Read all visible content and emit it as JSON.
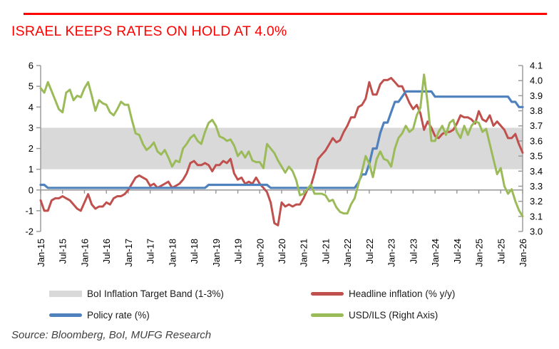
{
  "header": {
    "title": "ISRAEL KEEPS RATES ON HOLD AT 4.0%",
    "accent_color": "#FF0000"
  },
  "source": {
    "text": "Source: Bloomberg, BoI, MUFG Research"
  },
  "chart_data": {
    "type": "line",
    "title": "ISRAEL KEEPS RATES ON HOLD AT 4.0%",
    "xlabel": "",
    "ylabel_left": "",
    "ylabel_right": "",
    "grid": false,
    "legend_position": "bottom",
    "months_span": 132,
    "x_tick_step_months": 6,
    "x_tick_labels": [
      "Jan-15",
      "Jul-15",
      "Jan-16",
      "Jul-16",
      "Jan-17",
      "Jul-17",
      "Jan-18",
      "Jul-18",
      "Jan-19",
      "Jul-19",
      "Jan-20",
      "Jul-20",
      "Jan-21",
      "Jul-21",
      "Jan-22",
      "Jul-22",
      "Jan-23",
      "Jul-23",
      "Jan-24",
      "Jul-24",
      "Jan-25",
      "Jul-25",
      "Jan-26"
    ],
    "left_axis": {
      "min": -2,
      "max": 6,
      "ticks": [
        "6",
        "5",
        "4",
        "3",
        "2",
        "1",
        "0",
        "-1",
        "-2"
      ]
    },
    "right_axis": {
      "min": 3.0,
      "max": 4.1,
      "ticks": [
        "4.1",
        "4.0",
        "3.9",
        "3.8",
        "3.7",
        "3.6",
        "3.5",
        "3.4",
        "3.3",
        "3.2",
        "3.1",
        "3.0"
      ]
    },
    "band": {
      "label": "BoI Inflation Target Band (1-3%)",
      "from": 1,
      "to": 3,
      "color": "#D9D9D9"
    },
    "axis_color": "#969696",
    "legend": [
      {
        "label": "BoI Inflation Target Band (1-3%)",
        "type": "band",
        "color": "#D9D9D9"
      },
      {
        "label": "Headline inflation (% y/y)",
        "type": "line",
        "color": "#C0504D"
      },
      {
        "label": "Policy rate (%)",
        "type": "line",
        "color": "#4F81BD"
      },
      {
        "label": "USD/ILS (Right Axis)",
        "type": "line",
        "color": "#9BBB59"
      }
    ],
    "series": [
      {
        "name": "Headline inflation (% y/y)",
        "axis": "left",
        "color": "#C0504D",
        "width": 3,
        "values": [
          -0.5,
          -1.0,
          -1.0,
          -0.5,
          -0.4,
          -0.4,
          -0.3,
          -0.4,
          -0.5,
          -0.7,
          -0.9,
          -1.0,
          -0.6,
          -0.2,
          -0.7,
          -0.9,
          -0.8,
          -0.8,
          -0.6,
          -0.7,
          -0.4,
          -0.3,
          -0.3,
          -0.2,
          0.0,
          0.3,
          0.6,
          0.7,
          0.6,
          0.5,
          0.2,
          0.3,
          0.1,
          0.2,
          0.3,
          0.4,
          0.1,
          0.2,
          0.3,
          0.5,
          0.8,
          1.3,
          1.4,
          1.2,
          1.2,
          1.3,
          1.2,
          0.9,
          1.2,
          1.2,
          1.4,
          1.3,
          1.5,
          0.8,
          0.5,
          0.6,
          0.3,
          0.4,
          0.3,
          0.6,
          0.3,
          0.1,
          -0.1,
          -0.6,
          -1.6,
          -1.7,
          -0.6,
          -0.8,
          -0.7,
          -0.8,
          -0.7,
          -0.7,
          -0.4,
          0.0,
          0.2,
          0.8,
          1.5,
          1.7,
          1.9,
          2.2,
          2.5,
          2.3,
          2.4,
          2.8,
          3.1,
          3.5,
          3.5,
          4.0,
          4.1,
          4.4,
          5.2,
          4.6,
          4.6,
          5.1,
          5.3,
          5.3,
          5.4,
          5.2,
          5.0,
          5.0,
          4.6,
          4.2,
          3.9,
          4.1,
          3.7,
          2.9,
          3.3,
          3.0,
          2.6,
          2.5,
          2.7,
          2.8,
          2.8,
          2.9,
          3.2,
          3.6,
          3.5,
          3.5,
          3.4,
          3.2,
          3.8,
          3.4,
          3.3,
          3.6,
          3.1,
          3.3,
          3.1,
          2.9,
          2.5,
          2.5,
          2.7,
          2.2,
          1.8
        ]
      },
      {
        "name": "Policy rate (%)",
        "axis": "left",
        "color": "#4F81BD",
        "width": 3.2,
        "values": [
          0.25,
          0.25,
          0.1,
          0.1,
          0.1,
          0.1,
          0.1,
          0.1,
          0.1,
          0.1,
          0.1,
          0.1,
          0.1,
          0.1,
          0.1,
          0.1,
          0.1,
          0.1,
          0.1,
          0.1,
          0.1,
          0.1,
          0.1,
          0.1,
          0.1,
          0.1,
          0.1,
          0.1,
          0.1,
          0.1,
          0.1,
          0.1,
          0.1,
          0.1,
          0.1,
          0.1,
          0.1,
          0.1,
          0.1,
          0.1,
          0.1,
          0.1,
          0.1,
          0.1,
          0.1,
          0.1,
          0.25,
          0.25,
          0.25,
          0.25,
          0.25,
          0.25,
          0.25,
          0.25,
          0.25,
          0.25,
          0.25,
          0.25,
          0.25,
          0.25,
          0.25,
          0.25,
          0.25,
          0.1,
          0.1,
          0.1,
          0.1,
          0.1,
          0.1,
          0.1,
          0.1,
          0.1,
          0.1,
          0.1,
          0.1,
          0.1,
          0.1,
          0.1,
          0.1,
          0.1,
          0.1,
          0.1,
          0.1,
          0.1,
          0.1,
          0.1,
          0.1,
          0.35,
          0.75,
          0.75,
          1.25,
          2.0,
          2.0,
          2.75,
          3.25,
          3.25,
          3.75,
          4.25,
          4.25,
          4.5,
          4.75,
          4.75,
          4.75,
          4.75,
          4.75,
          4.75,
          4.75,
          4.75,
          4.5,
          4.5,
          4.5,
          4.5,
          4.5,
          4.5,
          4.5,
          4.5,
          4.5,
          4.5,
          4.5,
          4.5,
          4.5,
          4.5,
          4.5,
          4.5,
          4.5,
          4.5,
          4.5,
          4.5,
          4.5,
          4.25,
          4.25,
          4.0,
          4.0
        ]
      },
      {
        "name": "USD/ILS (Right Axis)",
        "axis": "right",
        "color": "#9BBB59",
        "width": 3,
        "values": [
          3.95,
          3.92,
          3.99,
          3.93,
          3.87,
          3.81,
          3.79,
          3.92,
          3.94,
          3.87,
          3.9,
          3.89,
          3.95,
          3.99,
          3.9,
          3.8,
          3.87,
          3.85,
          3.84,
          3.79,
          3.77,
          3.81,
          3.86,
          3.84,
          3.84,
          3.74,
          3.65,
          3.64,
          3.58,
          3.54,
          3.56,
          3.59,
          3.53,
          3.51,
          3.54,
          3.49,
          3.43,
          3.47,
          3.46,
          3.55,
          3.58,
          3.62,
          3.64,
          3.6,
          3.58,
          3.66,
          3.72,
          3.74,
          3.7,
          3.63,
          3.62,
          3.6,
          3.61,
          3.57,
          3.5,
          3.53,
          3.49,
          3.53,
          3.47,
          3.46,
          3.46,
          3.42,
          3.58,
          3.55,
          3.52,
          3.47,
          3.43,
          3.39,
          3.43,
          3.4,
          3.34,
          3.24,
          3.25,
          3.28,
          3.31,
          3.25,
          3.25,
          3.25,
          3.24,
          3.2,
          3.21,
          3.16,
          3.13,
          3.12,
          3.12,
          3.18,
          3.22,
          3.31,
          3.4,
          3.5,
          3.45,
          3.36,
          3.48,
          3.53,
          3.48,
          3.47,
          3.43,
          3.55,
          3.62,
          3.65,
          3.7,
          3.66,
          3.68,
          3.77,
          3.82,
          4.04,
          3.85,
          3.6,
          3.6,
          3.66,
          3.7,
          3.64,
          3.72,
          3.74,
          3.66,
          3.62,
          3.7,
          3.64,
          3.7,
          3.73,
          3.72,
          3.66,
          3.68,
          3.58,
          3.48,
          3.38,
          3.42,
          3.3,
          3.25,
          3.28,
          3.2,
          3.14,
          3.1
        ]
      }
    ]
  }
}
